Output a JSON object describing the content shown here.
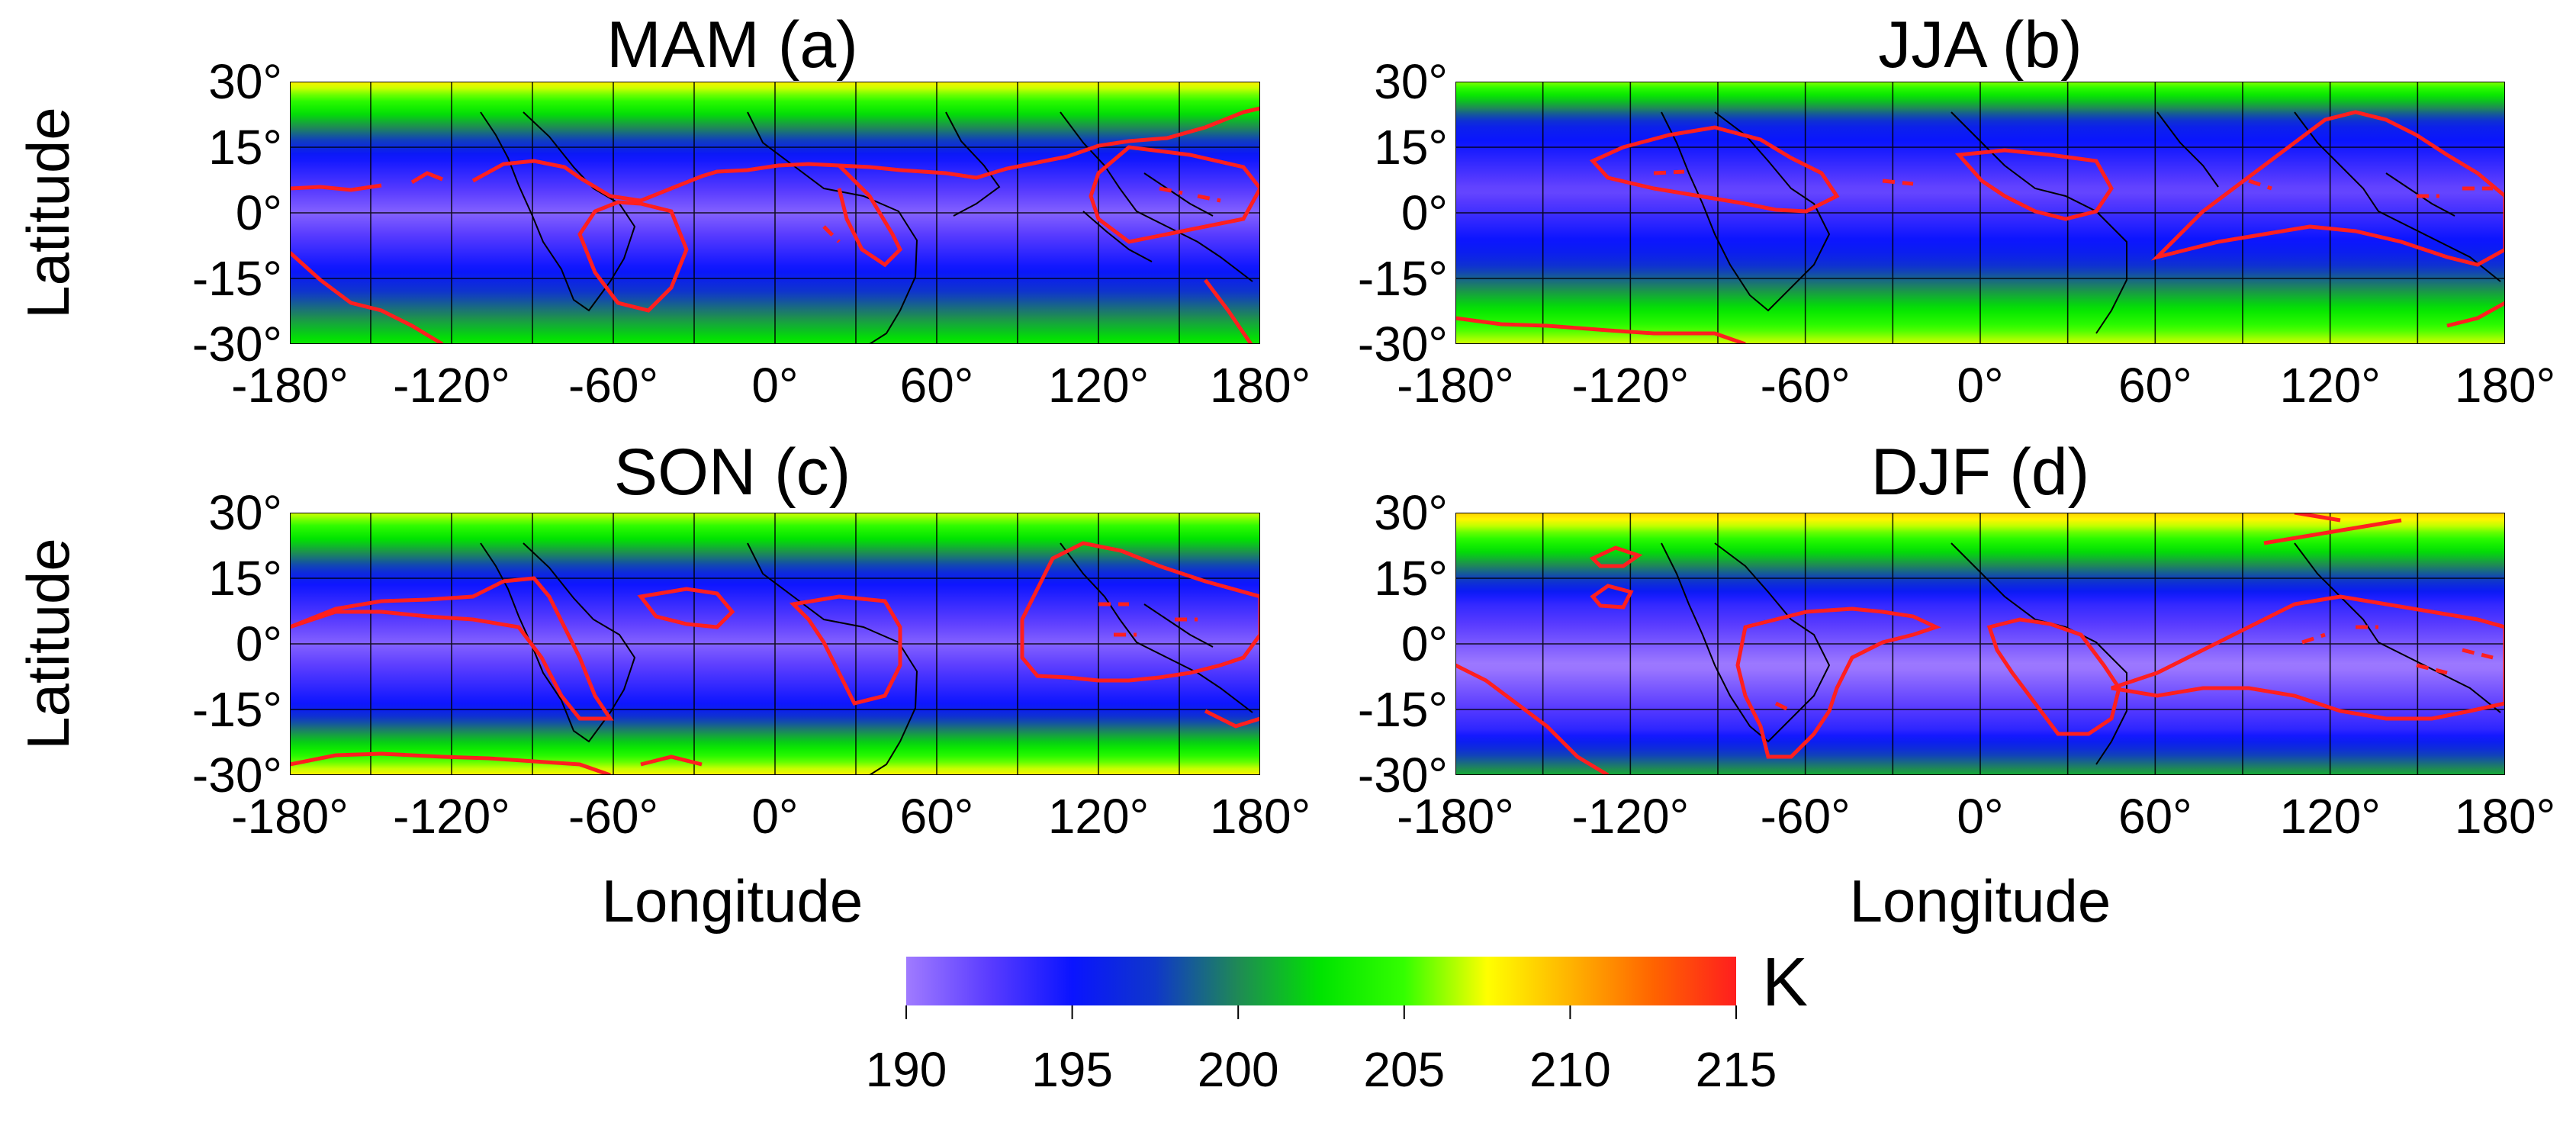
{
  "chart_data": {
    "type": "heatmap",
    "description_units": "K",
    "xlabel": "Longitude",
    "ylabel": "Latitude",
    "xlim": [
      -180,
      180
    ],
    "ylim": [
      -30,
      30
    ],
    "x_ticks": [
      "-180°",
      "-120°",
      "-60°",
      "0°",
      "60°",
      "120°",
      "180°"
    ],
    "y_ticks": [
      "30°",
      "15°",
      "0°",
      "-15°",
      "-30°"
    ],
    "x_tick_values": [
      -180,
      -120,
      -60,
      0,
      60,
      120,
      180
    ],
    "y_tick_values": [
      30,
      15,
      0,
      -15,
      -30
    ],
    "grid": true,
    "panels": [
      {
        "id": "a",
        "title": "MAM (a)",
        "band": {
          "center_lat": 0,
          "half_width": 13,
          "min_K": 191,
          "north_edge_K": 208,
          "south_edge_K": 203
        }
      },
      {
        "id": "b",
        "title": "JJA (b)",
        "band": {
          "center_lat": 5,
          "half_width": 15,
          "min_K": 192,
          "north_edge_K": 206,
          "south_edge_K": 207
        }
      },
      {
        "id": "c",
        "title": "SON (c)",
        "band": {
          "center_lat": 0,
          "half_width": 14,
          "min_K": 191,
          "north_edge_K": 207,
          "south_edge_K": 208
        }
      },
      {
        "id": "d",
        "title": "DJF (d)",
        "band": {
          "center_lat": -5,
          "half_width": 15,
          "min_K": 190,
          "north_edge_K": 209,
          "south_edge_K": 201
        }
      }
    ],
    "colorbar": {
      "min": 190,
      "max": 215,
      "ticks": [
        "190",
        "195",
        "200",
        "205",
        "210",
        "215"
      ],
      "tick_values": [
        190,
        195,
        200,
        205,
        210,
        215
      ],
      "unit": "K",
      "colors": [
        "#a07bff",
        "#5a3cff",
        "#0a14ff",
        "#0f37c9",
        "#1f8a55",
        "#00e400",
        "#34ff00",
        "#ffff00",
        "#ffb300",
        "#ff6400",
        "#ff1e1e"
      ]
    },
    "contour_color": "#ff1f1f"
  }
}
